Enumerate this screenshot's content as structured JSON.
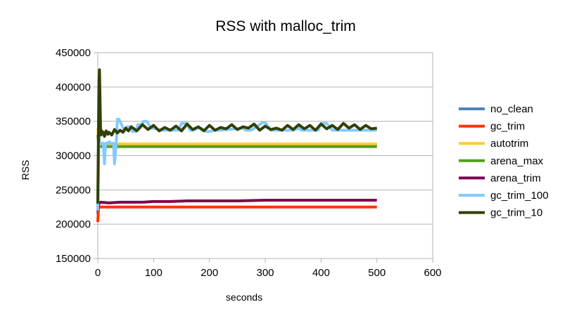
{
  "chart_data": {
    "type": "line",
    "title": "RSS with malloc_trim",
    "xlabel": "seconds",
    "ylabel": "RSS",
    "xlim": [
      0,
      600
    ],
    "ylim": [
      150000,
      450000
    ],
    "x_ticks": [
      "0",
      "100",
      "200",
      "300",
      "400",
      "500",
      "600"
    ],
    "y_ticks": [
      "150000",
      "200000",
      "250000",
      "300000",
      "350000",
      "400000",
      "450000"
    ],
    "grid": "horizontal",
    "legend_position": "right",
    "series": [
      {
        "name": "no_clean",
        "color": "#4f81bd",
        "x": [
          0,
          1,
          2,
          3,
          5,
          500
        ],
        "y": [
          215000,
          300000,
          330000,
          315000,
          315000,
          315000
        ]
      },
      {
        "name": "gc_trim",
        "color": "#ff3300",
        "x": [
          0,
          1,
          2,
          5,
          50,
          100,
          200,
          300,
          400,
          500
        ],
        "y": [
          203000,
          220000,
          225000,
          225000,
          225000,
          225000,
          225000,
          225000,
          225000,
          225000
        ]
      },
      {
        "name": "autotrim",
        "color": "#ffcc33",
        "x": [
          0,
          2,
          5,
          100,
          200,
          300,
          400,
          500
        ],
        "y": [
          340000,
          318000,
          317000,
          317000,
          317000,
          317000,
          317000,
          317000
        ]
      },
      {
        "name": "arena_max",
        "color": "#579d1c",
        "x": [
          0,
          2,
          5,
          100,
          200,
          300,
          400,
          500
        ],
        "y": [
          330000,
          314000,
          313000,
          313000,
          313000,
          313000,
          313000,
          313000
        ]
      },
      {
        "name": "arena_trim",
        "color": "#7e0050",
        "x": [
          0,
          2,
          5,
          20,
          40,
          60,
          80,
          100,
          130,
          160,
          200,
          250,
          300,
          350,
          400,
          450,
          500
        ],
        "y": [
          220000,
          230000,
          232000,
          231000,
          232000,
          232000,
          232000,
          233000,
          233000,
          234000,
          234000,
          234000,
          235000,
          235000,
          235000,
          235000,
          235000
        ]
      },
      {
        "name": "gc_trim_100",
        "color": "#83caff",
        "x": [
          0,
          2,
          4,
          10,
          12,
          14,
          18,
          20,
          24,
          28,
          30,
          33,
          35,
          38,
          48,
          52,
          58,
          62,
          68,
          72,
          78,
          82,
          88,
          95,
          100,
          112,
          118,
          145,
          150,
          160,
          165,
          172,
          178,
          185,
          195,
          200,
          210,
          220,
          260,
          265,
          270,
          275,
          295,
          300,
          310,
          320,
          350,
          360,
          365,
          395,
          400,
          410,
          420,
          440,
          500
        ],
        "y": [
          220000,
          320000,
          318000,
          318000,
          288000,
          318000,
          318000,
          320000,
          318000,
          318000,
          288000,
          318000,
          353000,
          353000,
          336000,
          342000,
          342000,
          335000,
          335000,
          345000,
          345000,
          350000,
          350000,
          340000,
          340000,
          337000,
          337000,
          337000,
          347000,
          347000,
          337000,
          337000,
          340000,
          340000,
          335000,
          335000,
          337000,
          337000,
          340000,
          337000,
          337000,
          337000,
          348000,
          348000,
          337000,
          337000,
          337000,
          340000,
          337000,
          337000,
          347000,
          347000,
          337000,
          337000,
          337000
        ]
      },
      {
        "name": "gc_trim_10",
        "color": "#314004",
        "x": [
          0,
          2,
          3,
          4,
          5,
          6,
          7,
          8,
          10,
          12,
          15,
          18,
          20,
          25,
          30,
          35,
          40,
          45,
          50,
          55,
          60,
          70,
          80,
          90,
          100,
          110,
          120,
          130,
          140,
          150,
          160,
          170,
          180,
          190,
          200,
          210,
          220,
          230,
          240,
          250,
          260,
          270,
          280,
          290,
          300,
          310,
          320,
          330,
          340,
          350,
          360,
          370,
          380,
          390,
          400,
          410,
          420,
          430,
          440,
          450,
          460,
          470,
          480,
          490,
          500
        ],
        "y": [
          230000,
          405000,
          425000,
          380000,
          335000,
          330000,
          336000,
          332000,
          334000,
          328000,
          336000,
          331000,
          334000,
          330000,
          338000,
          333000,
          337000,
          334000,
          340000,
          336000,
          342000,
          336000,
          345000,
          338000,
          344000,
          336000,
          341000,
          337000,
          343000,
          336000,
          346000,
          338000,
          342000,
          336000,
          344000,
          337000,
          341000,
          339000,
          345000,
          338000,
          342000,
          340000,
          346000,
          337000,
          343000,
          338000,
          340000,
          337000,
          344000,
          338000,
          345000,
          339000,
          344000,
          337000,
          346000,
          339000,
          344000,
          338000,
          347000,
          340000,
          345000,
          338000,
          344000,
          339000,
          340000
        ]
      }
    ],
    "legend": [
      "no_clean",
      "gc_trim",
      "autotrim",
      "arena_max",
      "arena_trim",
      "gc_trim_100",
      "gc_trim_10"
    ]
  }
}
